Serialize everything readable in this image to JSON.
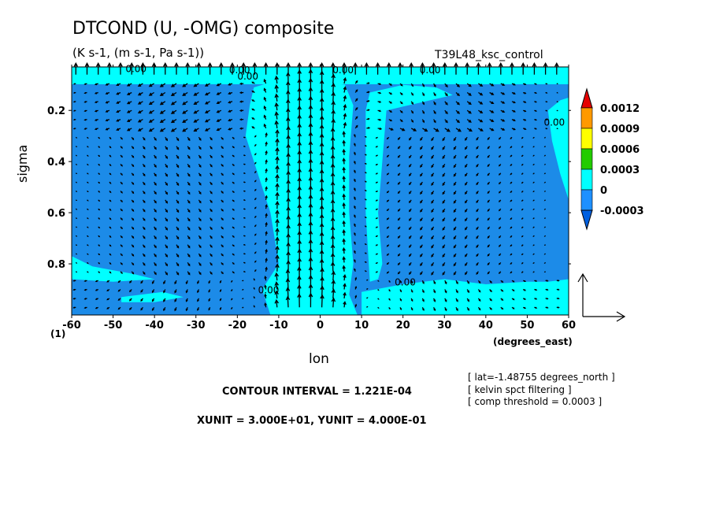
{
  "chart_data": {
    "type": "heatmap",
    "title": "DTCOND (U, -OMG) composite",
    "subtitle": "(K s-1, (m s-1, Pa s-1))",
    "run_label": "T39L48_ksc_control",
    "xlabel": "lon",
    "ylabel": "sigma",
    "x_units_label": "(degrees_east)",
    "y_marker_label": "(1)",
    "xlim": [
      -60,
      60
    ],
    "ylim": [
      1.0,
      0.03
    ],
    "x_ticks": [
      -60,
      -50,
      -40,
      -30,
      -20,
      -10,
      0,
      10,
      20,
      30,
      40,
      50,
      60
    ],
    "x_tick_labels": [
      "-60",
      "-50",
      "-40",
      "-30",
      "-20",
      "-10",
      "0",
      "10",
      "20",
      "30",
      "40",
      "50",
      "60"
    ],
    "y_ticks": [
      0.2,
      0.4,
      0.6,
      0.8
    ],
    "y_tick_labels": [
      "0.2",
      "0.4",
      "0.6",
      "0.8"
    ],
    "colorbar": {
      "levels": [
        0.0012,
        0.0009,
        0.0006,
        0.0003,
        0,
        -0.0003
      ],
      "labels": [
        "0.0012",
        "0.0009",
        "0.0006",
        "0.0003",
        "0",
        "-0.0003"
      ],
      "colors": [
        "#e60000",
        "#ff9900",
        "#ffff00",
        "#22cc00",
        "#00ffff",
        "#1e90ff",
        "#0060e0"
      ]
    },
    "field_colors": {
      "negative": "#1c8be8",
      "near_zero": "#00ffff"
    },
    "contour_labels": [
      "0.00",
      "0.00",
      "0.00",
      "0.00",
      "0.00",
      "0.00",
      "0.00"
    ],
    "contour_interval_text": "CONTOUR INTERVAL = 1.221E-04",
    "unit_vector_text": "XUNIT = 3.000E+01, YUNIT = 4.000E-01",
    "notes": [
      "[ lat=-1.48755 degrees_north ]",
      "[ kelvin spct filtering ]",
      "[ comp threshold = 0.0003 ]"
    ]
  }
}
